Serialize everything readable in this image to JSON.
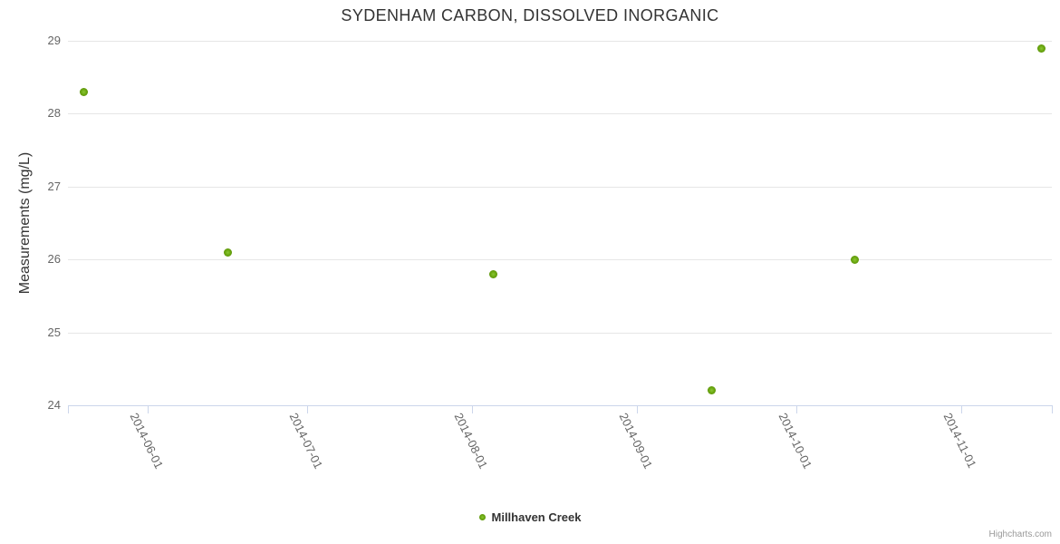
{
  "chart": {
    "credit": "Highcharts.com"
  },
  "chart_data": {
    "type": "scatter",
    "title": "SYDENHAM CARBON, DISSOLVED INORGANIC",
    "xlabel": "",
    "ylabel": "Measurements (mg/L)",
    "x_type": "datetime",
    "x_range": [
      "2014-05-17",
      "2014-11-18"
    ],
    "ylim": [
      24,
      29
    ],
    "y_ticks": [
      24,
      25,
      26,
      27,
      28,
      29
    ],
    "x_ticks": [
      {
        "date": "2014-06-01",
        "label": "2014-06-01"
      },
      {
        "date": "2014-07-01",
        "label": "2014-07-01"
      },
      {
        "date": "2014-08-01",
        "label": "2014-08-01"
      },
      {
        "date": "2014-09-01",
        "label": "2014-09-01"
      },
      {
        "date": "2014-10-01",
        "label": "2014-10-01"
      },
      {
        "date": "2014-11-01",
        "label": "2014-11-01"
      }
    ],
    "edge_ticks": [
      "2014-05-17",
      "2014-11-18"
    ],
    "grid": true,
    "legend_position": "bottom-center",
    "series": [
      {
        "name": "Millhaven Creek",
        "color": "#68a50e",
        "points": [
          {
            "x": "2014-05-20",
            "y": 28.3
          },
          {
            "x": "2014-06-16",
            "y": 26.1
          },
          {
            "x": "2014-08-05",
            "y": 25.8
          },
          {
            "x": "2014-09-15",
            "y": 24.2
          },
          {
            "x": "2014-10-12",
            "y": 26.0
          },
          {
            "x": "2014-11-16",
            "y": 28.9
          }
        ]
      }
    ]
  },
  "colors": {
    "title_text": "#333333",
    "tick_label_text": "#666666",
    "gridline": "#e6e6e6",
    "axis_line": "#ccd6eb",
    "marker_center": "#8ac633",
    "marker_edge": "#4e7c05"
  }
}
